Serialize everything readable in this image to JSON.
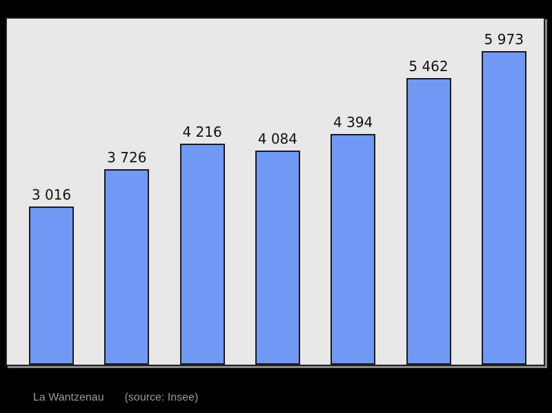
{
  "chart_data": {
    "type": "bar",
    "categories": [
      "",
      "",
      "",
      "",
      "",
      "",
      ""
    ],
    "values": [
      3016,
      3726,
      4216,
      4084,
      4394,
      5462,
      5973
    ],
    "bar_labels": [
      "3 016",
      "3 726",
      "4 216",
      "4 084",
      "4 394",
      "5 462",
      "5 973"
    ],
    "title": "",
    "xlabel": "",
    "ylabel": "",
    "ylim": [
      0,
      6600
    ],
    "grid": false,
    "legend_position": "none",
    "bar_color": "#6f99f5",
    "bar_border_color": "#1a1a1a",
    "plot_background": "#e8e8e8"
  },
  "footer": {
    "title": "La Wantzenau",
    "source": "(source: Insee)"
  },
  "colors": {
    "page_background": "#000000",
    "chart_border": "#1f1f1f",
    "chart_shadow": "#8a8a8a",
    "value_label_text": "#111111",
    "footer_text": "#9a9a9a"
  }
}
